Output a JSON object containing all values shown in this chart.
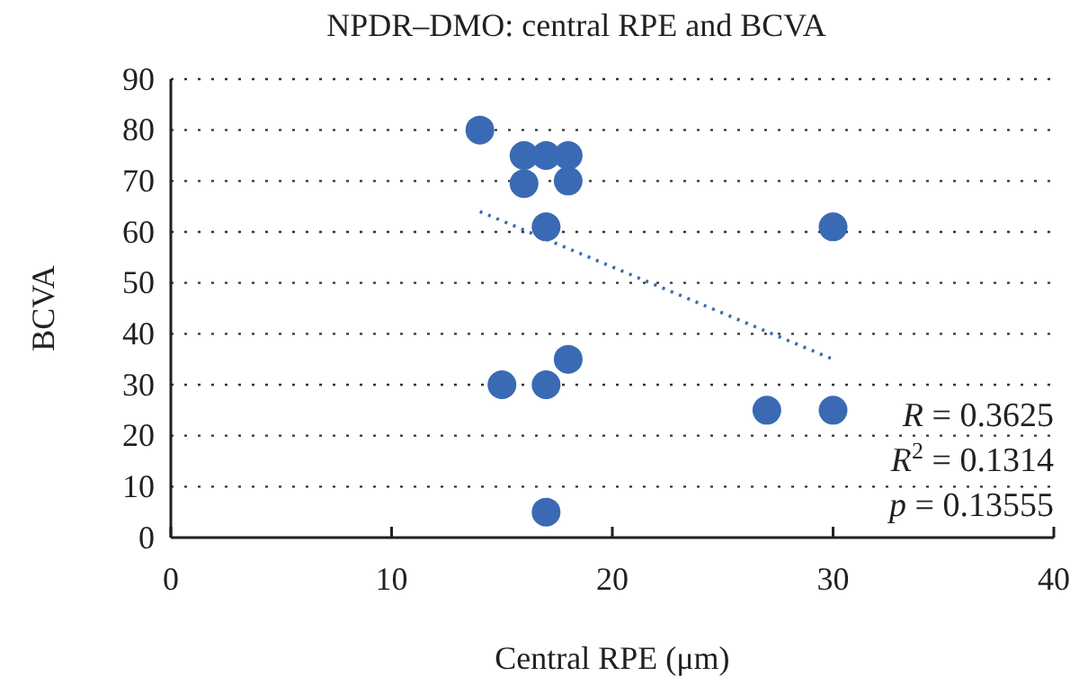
{
  "chart_data": {
    "type": "scatter",
    "title": "NPDR–DMO: central RPE and BCVA",
    "xlabel": "Central RPE (μm)",
    "ylabel": "BCVA",
    "xlim": [
      0,
      40
    ],
    "xticks": [
      0,
      10,
      20,
      30,
      40
    ],
    "ylim": [
      0,
      90
    ],
    "yticks": [
      0,
      10,
      20,
      30,
      40,
      50,
      60,
      70,
      80,
      90
    ],
    "grid": "y",
    "marker": "circle",
    "series": [
      {
        "color": "#3a6ab4",
        "x": [
          14,
          16,
          17,
          18,
          16,
          18,
          17,
          30,
          18,
          15,
          17,
          27,
          30,
          17
        ],
        "values": [
          80,
          75,
          75,
          75,
          69.5,
          70,
          61,
          61,
          35,
          30,
          30,
          25,
          25,
          5
        ]
      },
      {
        "type": "line",
        "color": "#3a6ab4",
        "line_style": "dotted",
        "marker": "none",
        "x": [
          14,
          30
        ],
        "values": [
          64,
          35
        ]
      }
    ],
    "annotations": [
      "R = 0.3625",
      "R$^{2}$ = 0.1314",
      "p = 0.13555"
    ]
  }
}
